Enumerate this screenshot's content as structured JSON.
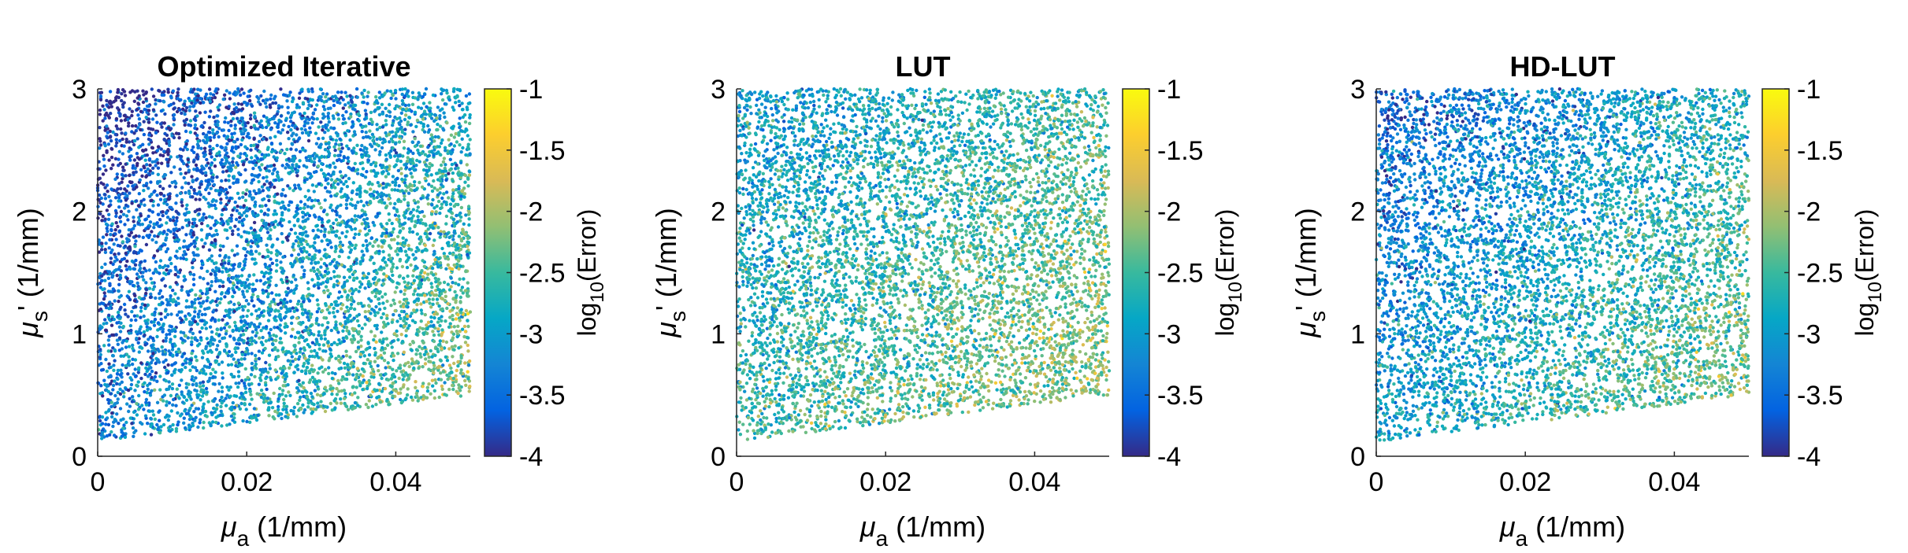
{
  "chart_data": [
    {
      "type": "scatter",
      "title": "Optimized Iterative",
      "xlabel": "μa (1/mm)",
      "ylabel": "μs' (1/mm)",
      "xlim": [
        0,
        0.05
      ],
      "ylim": [
        0,
        3
      ],
      "xticks": [
        "0",
        "0.02",
        "0.04"
      ],
      "yticks": [
        "0",
        "1",
        "2",
        "3"
      ],
      "colorbar": {
        "label": "log10(Error)",
        "range": [
          -4,
          -1
        ],
        "ticks": [
          "-1",
          "-1.5",
          "-2",
          "-2.5",
          "-3",
          "-3.5",
          "-4"
        ],
        "colormap": "parula"
      },
      "error_model": {
        "base": -3.25,
        "mua_coef": 25,
        "scatter_coef": -0.28,
        "noise": 0.38
      }
    },
    {
      "type": "scatter",
      "title": "LUT",
      "xlabel": "μa (1/mm)",
      "ylabel": "μs' (1/mm)",
      "xlim": [
        0,
        0.05
      ],
      "ylim": [
        0,
        3
      ],
      "xticks": [
        "0",
        "0.02",
        "0.04"
      ],
      "yticks": [
        "0",
        "1",
        "2",
        "3"
      ],
      "colorbar": {
        "label": "log10(Error)",
        "range": [
          -4,
          -1
        ],
        "ticks": [
          "-1",
          "-1.5",
          "-2",
          "-2.5",
          "-3",
          "-3.5",
          "-4"
        ],
        "colormap": "parula"
      },
      "error_model": {
        "base": -2.55,
        "mua_coef": 12,
        "scatter_coef": -0.18,
        "noise": 0.35
      }
    },
    {
      "type": "scatter",
      "title": "HD-LUT",
      "xlabel": "μa (1/mm)",
      "ylabel": "μs' (1/mm)",
      "xlim": [
        0,
        0.05
      ],
      "ylim": [
        0,
        3
      ],
      "xticks": [
        "0",
        "0.02",
        "0.04"
      ],
      "yticks": [
        "0",
        "1",
        "2",
        "3"
      ],
      "colorbar": {
        "label": "log10(Error)",
        "range": [
          -4,
          -1
        ],
        "ticks": [
          "-1",
          "-1.5",
          "-2",
          "-2.5",
          "-3",
          "-3.5",
          "-4"
        ],
        "colormap": "parula"
      },
      "error_model": {
        "base": -2.95,
        "mua_coef": 18,
        "scatter_coef": -0.22,
        "noise": 0.36
      }
    }
  ],
  "domain_boundary": {
    "mua": [
      0,
      0.05
    ],
    "mus_at_min_mua": 0.12,
    "mus_at_max_mua": 0.5
  },
  "colors": {
    "parula": [
      "#352a87",
      "#0363e1",
      "#1485d4",
      "#06a7c6",
      "#38b99e",
      "#92bf73",
      "#d9ba56",
      "#fcce2e",
      "#f9fb0e"
    ]
  }
}
